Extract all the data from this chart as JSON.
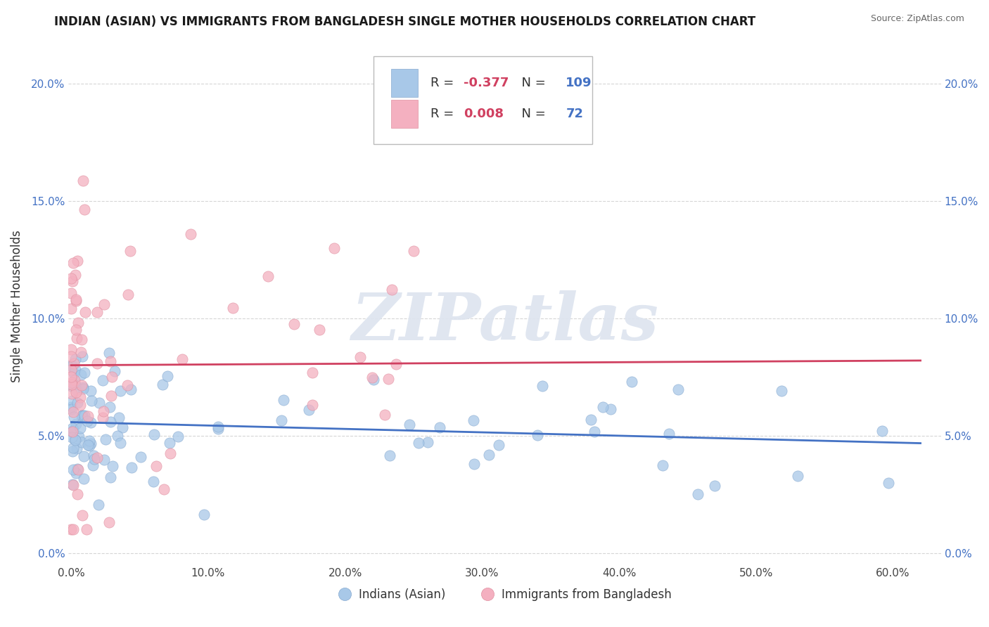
{
  "title": "INDIAN (ASIAN) VS IMMIGRANTS FROM BANGLADESH SINGLE MOTHER HOUSEHOLDS CORRELATION CHART",
  "source": "Source: ZipAtlas.com",
  "ylabel": "Single Mother Households",
  "legend1_label": "Indians (Asian)",
  "legend2_label": "Immigrants from Bangladesh",
  "r1": -0.377,
  "n1": 109,
  "r2": 0.008,
  "n2": 72,
  "blue_scatter_color": "#a8c8e8",
  "pink_scatter_color": "#f4b0c0",
  "blue_line_color": "#4472c4",
  "pink_line_color": "#d04060",
  "watermark": "ZIPatlas",
  "watermark_color": "#dde4ef",
  "xlim": [
    -0.002,
    0.635
  ],
  "ylim": [
    -0.005,
    0.215
  ],
  "xtick_vals": [
    0.0,
    0.1,
    0.2,
    0.3,
    0.4,
    0.5,
    0.6
  ],
  "xtick_labels": [
    "0.0%",
    "10.0%",
    "20.0%",
    "30.0%",
    "40.0%",
    "50.0%",
    "60.0%"
  ],
  "ytick_vals": [
    0.0,
    0.05,
    0.1,
    0.15,
    0.2
  ],
  "ytick_labels": [
    "0.0%",
    "5.0%",
    "10.0%",
    "15.0%",
    "20.0%"
  ],
  "title_fontsize": 12,
  "tick_fontsize": 11,
  "ylabel_fontsize": 12,
  "legend_r_color": "#d04060",
  "legend_n_color": "#4472c4",
  "legend_text_color": "#333333"
}
